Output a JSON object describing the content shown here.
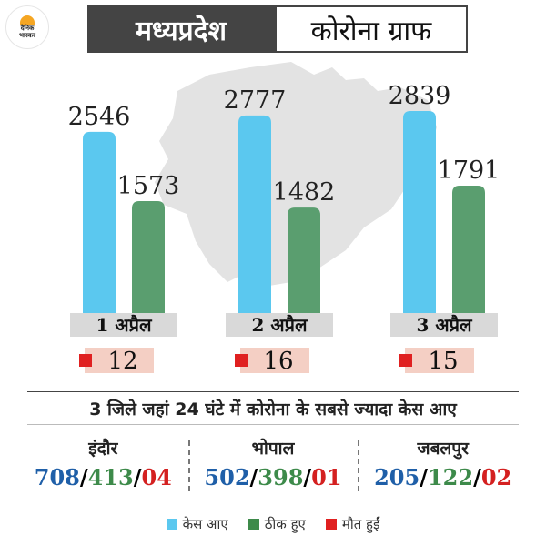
{
  "logo": {
    "line1": "दैनिक",
    "line2": "भास्कर"
  },
  "header": {
    "title_left": "मध्यप्रदेश",
    "title_right": "कोरोना ग्राफ"
  },
  "colors": {
    "cases": "#5bc8ef",
    "recovered": "#5a9e6f",
    "deaths": "#e02020",
    "death_box": "#f4cfc4",
    "date_box": "#d9d9d9",
    "map": "#e3e3e3"
  },
  "chart_data": {
    "type": "bar",
    "categories": [
      "1 अप्रैल",
      "2 अप्रैल",
      "3 अप्रैल"
    ],
    "series": [
      {
        "name": "केस आए",
        "values": [
          2546,
          2777,
          2839
        ]
      },
      {
        "name": "ठीक हुए",
        "values": [
          1573,
          1482,
          1791
        ]
      },
      {
        "name": "मौत हुईं",
        "values": [
          12,
          16,
          15
        ]
      }
    ],
    "title": "",
    "xlabel": "",
    "ylabel": "",
    "ylim": [
      0,
      2839
    ],
    "grid": false,
    "legend": "bottom"
  },
  "subheading": "3 जिले जहां 24 घंटे में कोरोना के सबसे ज्यादा केस आए",
  "cities": [
    {
      "name": "इंदौर",
      "cases": "708",
      "recovered": "413",
      "deaths": "04"
    },
    {
      "name": "भोपाल",
      "cases": "502",
      "recovered": "398",
      "deaths": "01"
    },
    {
      "name": "जबलपुर",
      "cases": "205",
      "recovered": "122",
      "deaths": "02"
    }
  ],
  "sep": "/",
  "legend": [
    {
      "label": "केस आए",
      "color": "#5bc8ef"
    },
    {
      "label": "ठीक हुए",
      "color": "#5a9e6f"
    },
    {
      "label": "मौत हुईं",
      "color": "#e02020"
    }
  ]
}
